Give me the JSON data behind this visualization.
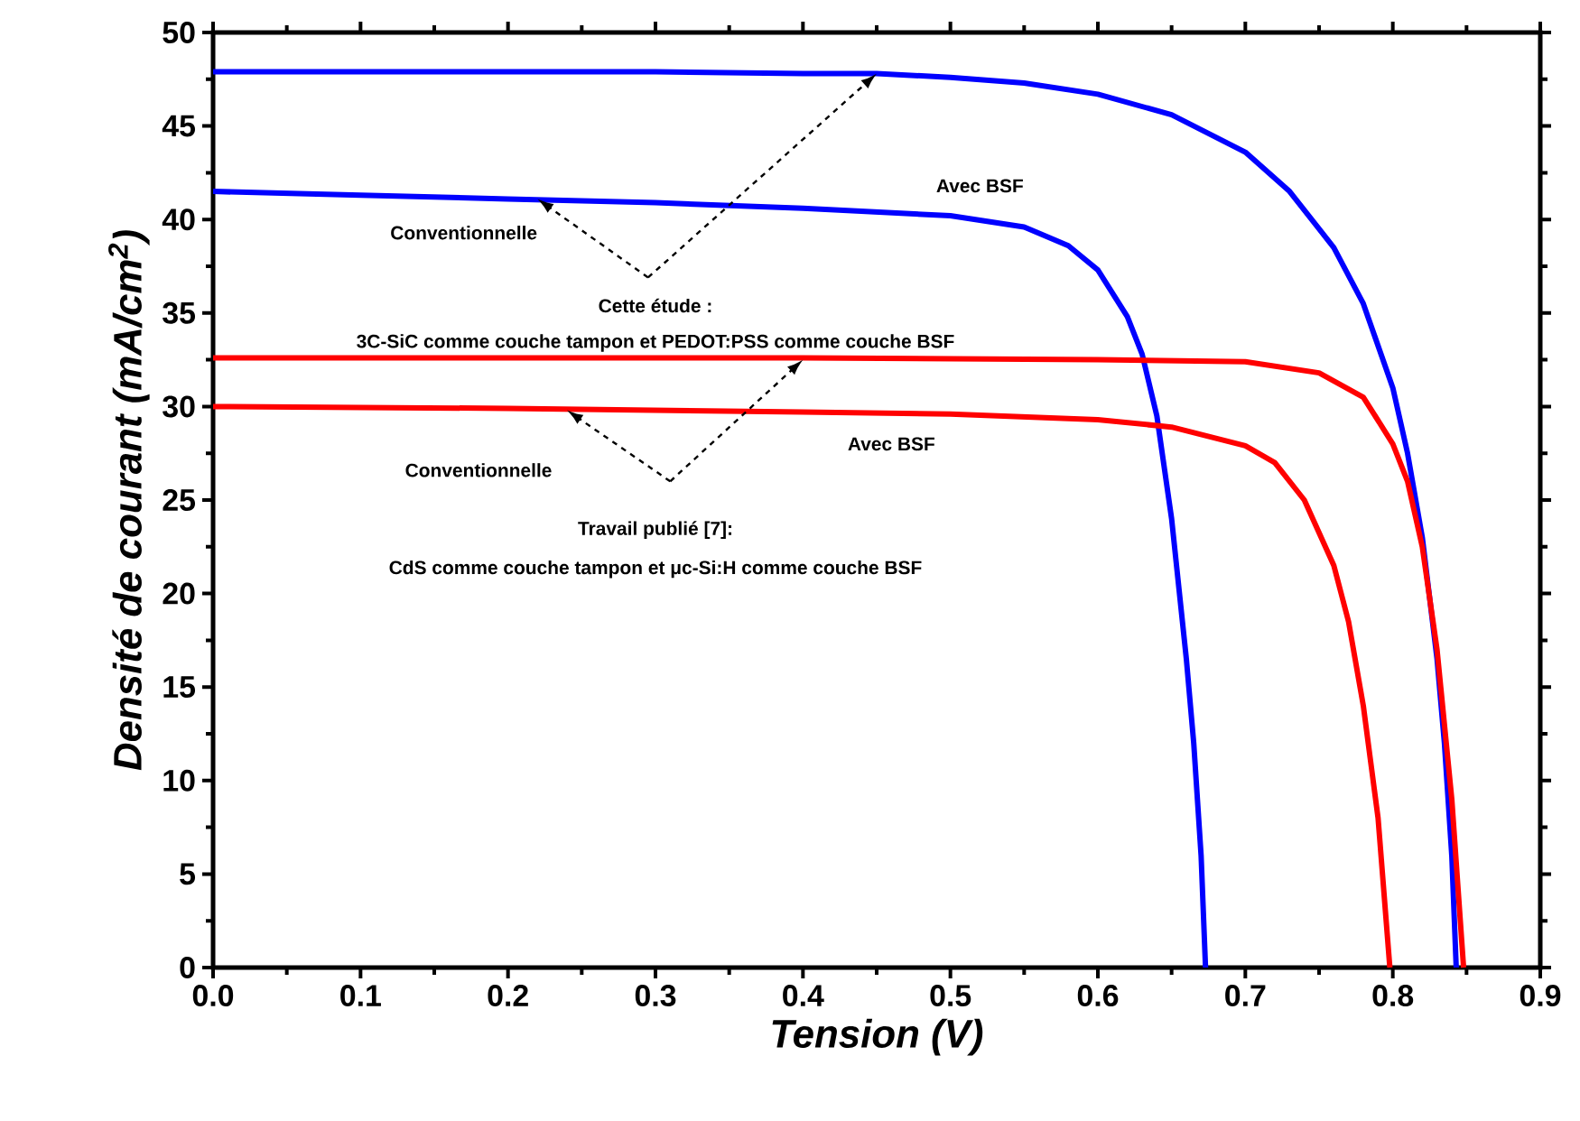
{
  "chart_data": {
    "type": "line",
    "xlabel": "Tension (V)",
    "ylabel": "Densité de courant (mA/cm$^{2}$)",
    "xlim": [
      0,
      0.9
    ],
    "ylim": [
      0,
      50
    ],
    "xticks": [
      {
        "value": 0,
        "label": "0.0"
      },
      0.1,
      0.2,
      0.3,
      0.4,
      0.5,
      0.6,
      0.7,
      0.8,
      0.9
    ],
    "yticks": [
      0,
      5,
      10,
      15,
      20,
      25,
      30,
      35,
      40,
      45,
      50
    ],
    "grid": false,
    "marker": "none",
    "line_style": "solid",
    "series": [
      {
        "color": "#0000ff",
        "x": [
          0,
          0.1,
          0.2,
          0.3,
          0.4,
          0.45,
          0.5,
          0.55,
          0.6,
          0.65,
          0.7,
          0.73,
          0.76,
          0.78,
          0.8,
          0.81,
          0.82,
          0.83,
          0.835,
          0.84,
          0.843
        ],
        "values": [
          47.9,
          47.9,
          47.9,
          47.9,
          47.8,
          47.8,
          47.6,
          47.3,
          46.7,
          45.6,
          43.6,
          41.5,
          38.5,
          35.5,
          31,
          27.5,
          23,
          16.5,
          12,
          6,
          0
        ]
      },
      {
        "color": "#0000ff",
        "x": [
          0,
          0.1,
          0.2,
          0.3,
          0.4,
          0.5,
          0.55,
          0.58,
          0.6,
          0.62,
          0.63,
          0.64,
          0.65,
          0.66,
          0.665,
          0.67,
          0.673
        ],
        "values": [
          41.5,
          41.3,
          41.1,
          40.9,
          40.6,
          40.2,
          39.6,
          38.6,
          37.3,
          34.8,
          32.8,
          29.5,
          24,
          16.5,
          12,
          6,
          0
        ]
      },
      {
        "color": "#ff0000",
        "x": [
          0,
          0.2,
          0.4,
          0.6,
          0.7,
          0.75,
          0.78,
          0.8,
          0.81,
          0.82,
          0.83,
          0.84,
          0.848
        ],
        "values": [
          32.6,
          32.6,
          32.6,
          32.5,
          32.4,
          31.8,
          30.5,
          28,
          26,
          22.5,
          17,
          9,
          0
        ]
      },
      {
        "color": "#ff0000",
        "x": [
          0,
          0.2,
          0.4,
          0.5,
          0.6,
          0.65,
          0.7,
          0.72,
          0.74,
          0.76,
          0.77,
          0.78,
          0.79,
          0.798
        ],
        "values": [
          30,
          29.9,
          29.7,
          29.6,
          29.3,
          28.9,
          27.9,
          27,
          25,
          21.5,
          18.5,
          14,
          8,
          0
        ]
      }
    ],
    "annotations": [
      "Avec BSF",
      "Conventionnelle",
      {
        "text": "Cette étude :",
        "x": 0.22,
        "y": 41.1
      },
      "3C-SiC comme couche tampon et PEDOT:PSS comme couche BSF",
      "Avec BSF",
      "Conventionnelle",
      "Travail publié [7]:",
      "CdS comme couche tampon et μc-Si:H comme couche BSF"
    ]
  }
}
